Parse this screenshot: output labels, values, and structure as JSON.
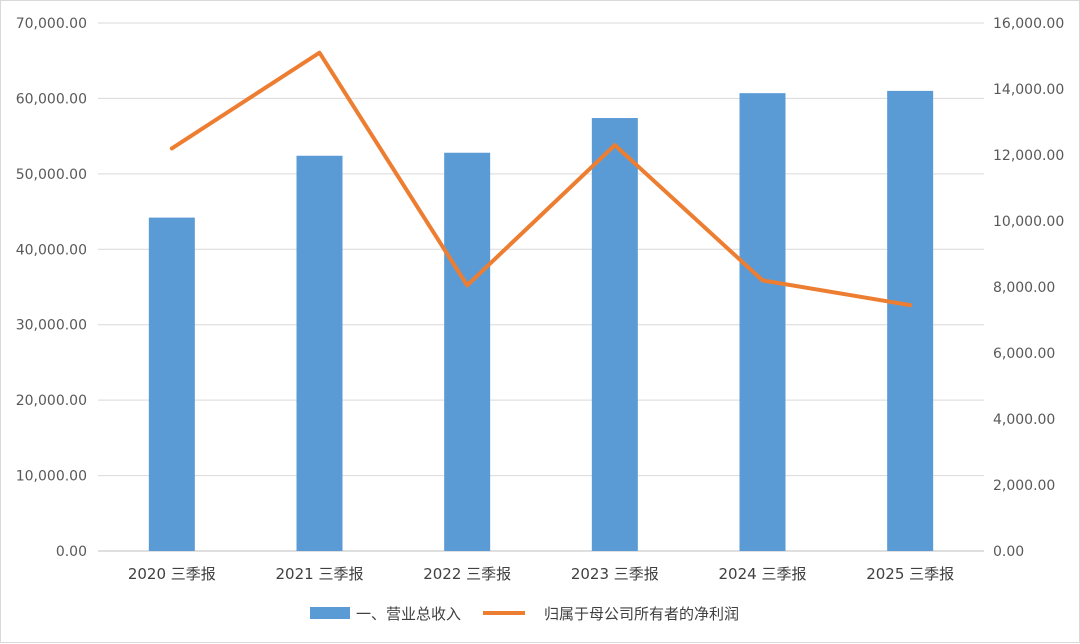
{
  "chart_data": {
    "type": "bar+line",
    "categories": [
      "2020 三季报",
      "2021 三季报",
      "2022 三季报",
      "2023 三季报",
      "2024 三季报",
      "2025 三季报"
    ],
    "series": [
      {
        "name": "一、营业总收入",
        "type": "bar",
        "axis": "left",
        "color": "#5b9bd5",
        "values": [
          44200,
          52400,
          52800,
          57400,
          60700,
          61000
        ]
      },
      {
        "name": "归属于母公司所有者的净利润",
        "type": "line",
        "axis": "right",
        "color": "#ed7d31",
        "values": [
          12200,
          15100,
          8050,
          12300,
          8200,
          7450
        ]
      }
    ],
    "y_left": {
      "range": [
        0,
        70000
      ],
      "ticks": [
        "0.00",
        "10,000.00",
        "20,000.00",
        "30,000.00",
        "40,000.00",
        "50,000.00",
        "60,000.00",
        "70,000.00"
      ]
    },
    "y_right": {
      "range": [
        0,
        16000
      ],
      "ticks": [
        "0.00",
        "2,000.00",
        "4,000.00",
        "6,000.00",
        "8,000.00",
        "10,000.00",
        "12,000.00",
        "14,000.00",
        "16,000.00"
      ]
    },
    "grid": true,
    "legend_position": "bottom"
  }
}
